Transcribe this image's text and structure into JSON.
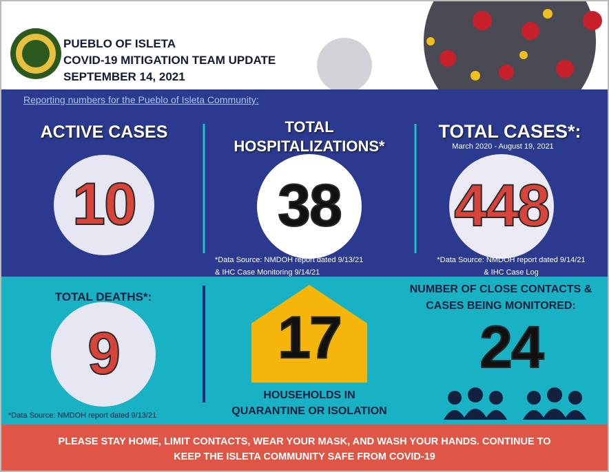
{
  "header": {
    "org": "PUEBLO OF ISLETA",
    "title": "COVID-19 MITIGATION TEAM UPDATE",
    "date": "SEPTEMBER 14, 2021"
  },
  "subtitle": "Reporting numbers for the Pueblo of Isleta Community:",
  "panels": [
    {
      "label": [
        "ACTIVE CASES"
      ],
      "value": 10
    },
    {
      "label": [
        "TOTAL",
        "HOSPITALIZATIONS*"
      ],
      "value": 38,
      "note": [
        "*Data Source: NMDOH report dated 9/13/21",
        "& IHC Case Monitoring 9/14/21"
      ]
    },
    {
      "label": [
        "TOTAL CASES*:"
      ],
      "sublabel": "March 2020 - August 19, 2021",
      "value": 448,
      "note": [
        "*Data Source: NMDOH report dated 9/14/21",
        "& IHC Case Log"
      ]
    },
    {
      "label": [
        "TOTAL DEATHS*:"
      ],
      "value": 9,
      "note": [
        "*Data Source: NMDOH report dated 9/13/21"
      ]
    },
    {
      "label": [
        "HOUSEHOLDS IN",
        "QUARANTINE OR ISOLATION"
      ],
      "value": 17
    },
    {
      "label": [
        "NUMBER OF CLOSE CONTACTS &",
        "CASES BEING MONITORED:"
      ],
      "value": 24
    }
  ],
  "footer": [
    "PLEASE STAY HOME, LIMIT CONTACTS, WEAR YOUR MASK, AND WASH YOUR HANDS. CONTINUE TO",
    "KEEP THE ISLETA COMMUNITY SAFE FROM COVID-19"
  ]
}
